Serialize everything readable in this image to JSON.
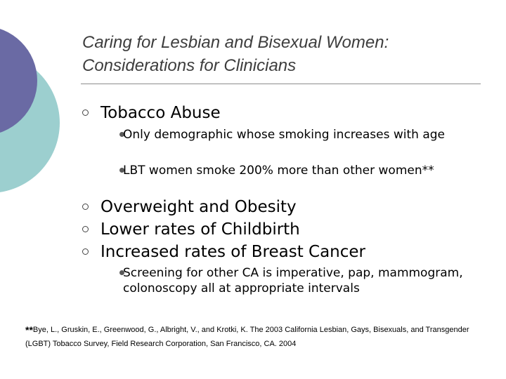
{
  "slide": {
    "title": "Caring for Lesbian and Bisexual Women: Considerations for Clinicians",
    "items": [
      {
        "text": "Tobacco Abuse"
      },
      {
        "text": "Overweight and Obesity"
      },
      {
        "text": "Lower rates of Childbirth"
      },
      {
        "text": "Increased rates of Breast Cancer"
      }
    ],
    "sub_items": [
      {
        "text": "Only demographic whose smoking increases with age"
      },
      {
        "text": "LBT women smoke 200% more than other women**"
      },
      {
        "text": "Screening for other CA is imperative, pap, mammogram, colonoscopy all at appropriate intervals"
      }
    ],
    "footnote": {
      "marker": "**",
      "text": "Bye, L., Gruskin, E., Greenwood, G., Albright, V., and Krotki, K. The 2003 California Lesbian, Gays, Bisexuals, and Transgender (LGBT) Tobacco Survey, Field Research Corporation, San Francisco, CA. 2004"
    },
    "colors": {
      "circle_dark": "#6a6aa4",
      "circle_light": "#9ccfcf",
      "rule": "#8c8c8c"
    }
  }
}
